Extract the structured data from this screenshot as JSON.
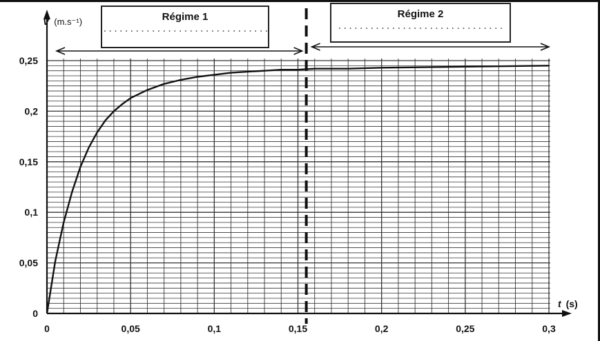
{
  "chart_data": {
    "type": "line",
    "title": "",
    "ylabel_var": "V",
    "ylabel_unit": "(m.s⁻¹)",
    "xlabel_var": "t",
    "xlabel_unit": "(s)",
    "xlim": [
      0,
      0.3
    ],
    "ylim": [
      0,
      0.25
    ],
    "x_ticks": [
      "0",
      "0,05",
      "0,1",
      "0,15",
      "0,2",
      "0,25",
      "0,3"
    ],
    "x_tick_values": [
      0,
      0.05,
      0.1,
      0.15,
      0.2,
      0.25,
      0.3
    ],
    "y_ticks": [
      "0",
      "0,05",
      "0,1",
      "0,15",
      "0,2",
      "0,25"
    ],
    "y_tick_values": [
      0,
      0.05,
      0.1,
      0.15,
      0.2,
      0.25
    ],
    "grid": true,
    "series": [
      {
        "x": [
          0,
          0.005,
          0.01,
          0.015,
          0.02,
          0.025,
          0.03,
          0.035,
          0.04,
          0.045,
          0.05,
          0.06,
          0.07,
          0.08,
          0.09,
          0.1,
          0.11,
          0.12,
          0.13,
          0.14,
          0.15,
          0.16,
          0.18,
          0.2,
          0.25,
          0.3
        ],
        "values": [
          0,
          0.052,
          0.09,
          0.12,
          0.145,
          0.164,
          0.179,
          0.191,
          0.2,
          0.207,
          0.213,
          0.221,
          0.227,
          0.231,
          0.234,
          0.236,
          0.238,
          0.239,
          0.24,
          0.241,
          0.241,
          0.242,
          0.242,
          0.243,
          0.244,
          0.245
        ]
      }
    ],
    "separator_t": 0.155,
    "regime_1": {
      "label": "Régime 1",
      "dots": "...............................",
      "from": 0,
      "to": 0.155
    },
    "regime_2": {
      "label": "Régime 2",
      "dots": "...............................",
      "from": 0.155,
      "to": 0.3
    }
  }
}
